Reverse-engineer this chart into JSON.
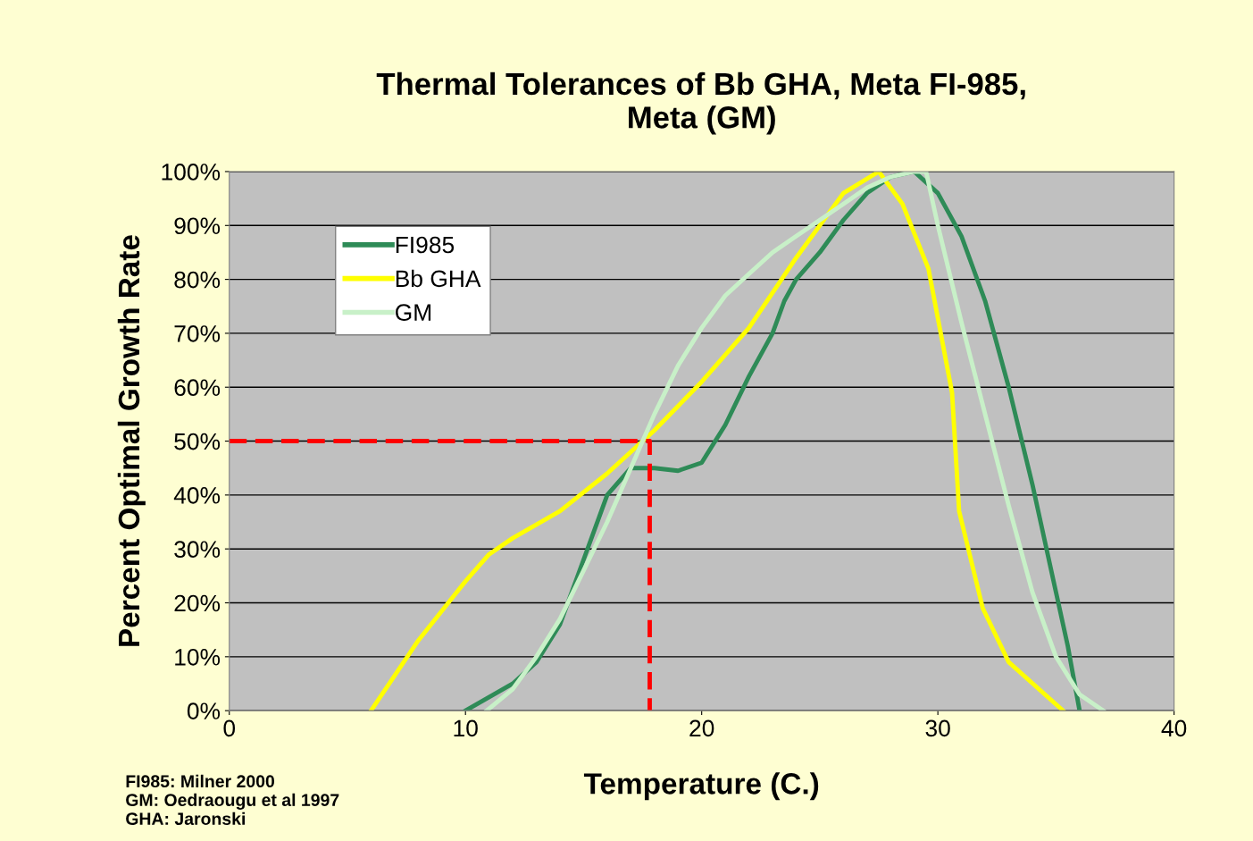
{
  "chart_data": {
    "type": "line",
    "title": "Thermal Tolerances of Bb GHA, Meta FI-985,\nMeta (GM)",
    "xlabel": "Temperature (C.)",
    "ylabel": "Percent Optimal Growth Rate",
    "xlim": [
      0,
      40
    ],
    "xticks": [
      0,
      10,
      20,
      30,
      40
    ],
    "ylim": [
      0,
      100
    ],
    "yticks": [
      {
        "value": 0,
        "label": "0%"
      },
      {
        "value": 10,
        "label": "10%"
      },
      {
        "value": 20,
        "label": "20%"
      },
      {
        "value": 30,
        "label": "30%"
      },
      {
        "value": 40,
        "label": "40%"
      },
      {
        "value": 50,
        "label": "50%"
      },
      {
        "value": 60,
        "label": "60%"
      },
      {
        "value": 70,
        "label": "70%"
      },
      {
        "value": 80,
        "label": "80%"
      },
      {
        "value": 90,
        "label": "90%"
      },
      {
        "value": 100,
        "label": "100%"
      }
    ],
    "grid": "y",
    "legend": "top left",
    "series": [
      {
        "name": "FI985",
        "color": "#2e8b57",
        "x": [
          10,
          12,
          13,
          14,
          15,
          16,
          17,
          18,
          19,
          20,
          21,
          22,
          23,
          23.5,
          24,
          25,
          26,
          27,
          28,
          29,
          30,
          31,
          32,
          33,
          34,
          35,
          35.5,
          36
        ],
        "values": [
          0,
          5,
          9,
          16,
          28,
          40,
          45,
          45,
          44.5,
          46,
          53,
          62,
          70,
          76,
          80,
          85,
          91,
          96,
          99,
          100,
          96,
          88,
          76,
          60,
          42,
          22,
          12,
          0
        ]
      },
      {
        "name": "Bb GHA",
        "color": "#ffff00",
        "x": [
          6,
          8,
          10,
          11,
          12,
          14,
          16,
          18,
          20,
          22,
          24,
          26,
          27.5,
          28.5,
          29.6,
          30.6,
          30.9,
          31.9,
          33,
          35.3
        ],
        "values": [
          0,
          13,
          24,
          29,
          32,
          37,
          44,
          52,
          61,
          71,
          84,
          96,
          100,
          94,
          82,
          59,
          37,
          19,
          9,
          0
        ]
      },
      {
        "name": "GM",
        "color": "#c8f0c8",
        "x": [
          10.9,
          12,
          13,
          14,
          15,
          16,
          17,
          18,
          19,
          20,
          21,
          22,
          23,
          24,
          25,
          26,
          27,
          28,
          29,
          29.5,
          30,
          31,
          32,
          33,
          34,
          35,
          36,
          37
        ],
        "values": [
          0,
          4,
          10,
          17,
          26,
          35,
          45,
          55,
          64,
          71,
          77,
          81,
          85,
          88,
          91,
          94,
          97,
          99,
          100,
          100,
          90,
          72,
          55,
          38,
          22,
          10,
          3,
          0
        ]
      },
      {
        "color": "#ff0000",
        "line_style": "dashed",
        "x": [
          0,
          17.8,
          17.8
        ],
        "values": [
          50,
          50,
          0
        ]
      }
    ],
    "annotations": [
      "FI985: Milner 2000\nGM: Oedraougu et al 1997\nGHA: Jaronski"
    ]
  }
}
